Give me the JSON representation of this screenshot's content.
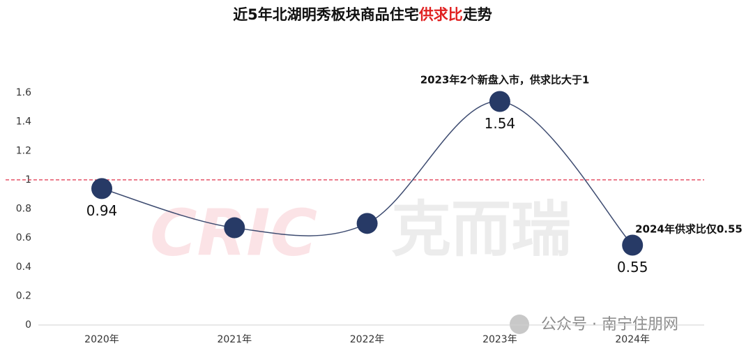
{
  "chart_data": {
    "type": "line",
    "title": [
      "近5年北湖明秀板块商品住宅",
      "供求比",
      "走势"
    ],
    "title_colors": [
      "#111111",
      "#e02020",
      "#111111"
    ],
    "categories": [
      "2020年",
      "2021年",
      "2022年",
      "2023年",
      "2024年"
    ],
    "series": [
      {
        "name": "供求比",
        "color": "#3d4b70",
        "marker_color": "#273a66",
        "values": [
          0.94,
          0.67,
          0.7,
          1.54,
          0.55
        ],
        "value_labels": [
          "0.94",
          null,
          null,
          "1.54",
          "0.55"
        ]
      }
    ],
    "ylim": [
      0,
      1.6
    ],
    "yticks": [
      0,
      0.2,
      0.4,
      0.6,
      0.8,
      1,
      1.2,
      1.4,
      1.6
    ],
    "reference_line": {
      "value": 1,
      "color": "#e0304a"
    },
    "smooth": true,
    "annotations": [
      {
        "text": "2023年2个新盘入市，供求比大于1",
        "index": 3
      },
      {
        "text": "2024年供求比仅0.55",
        "index": 4
      }
    ],
    "watermarks": [
      "CRIC",
      "克而瑞",
      "公众号 · 南宁住朋网"
    ]
  }
}
